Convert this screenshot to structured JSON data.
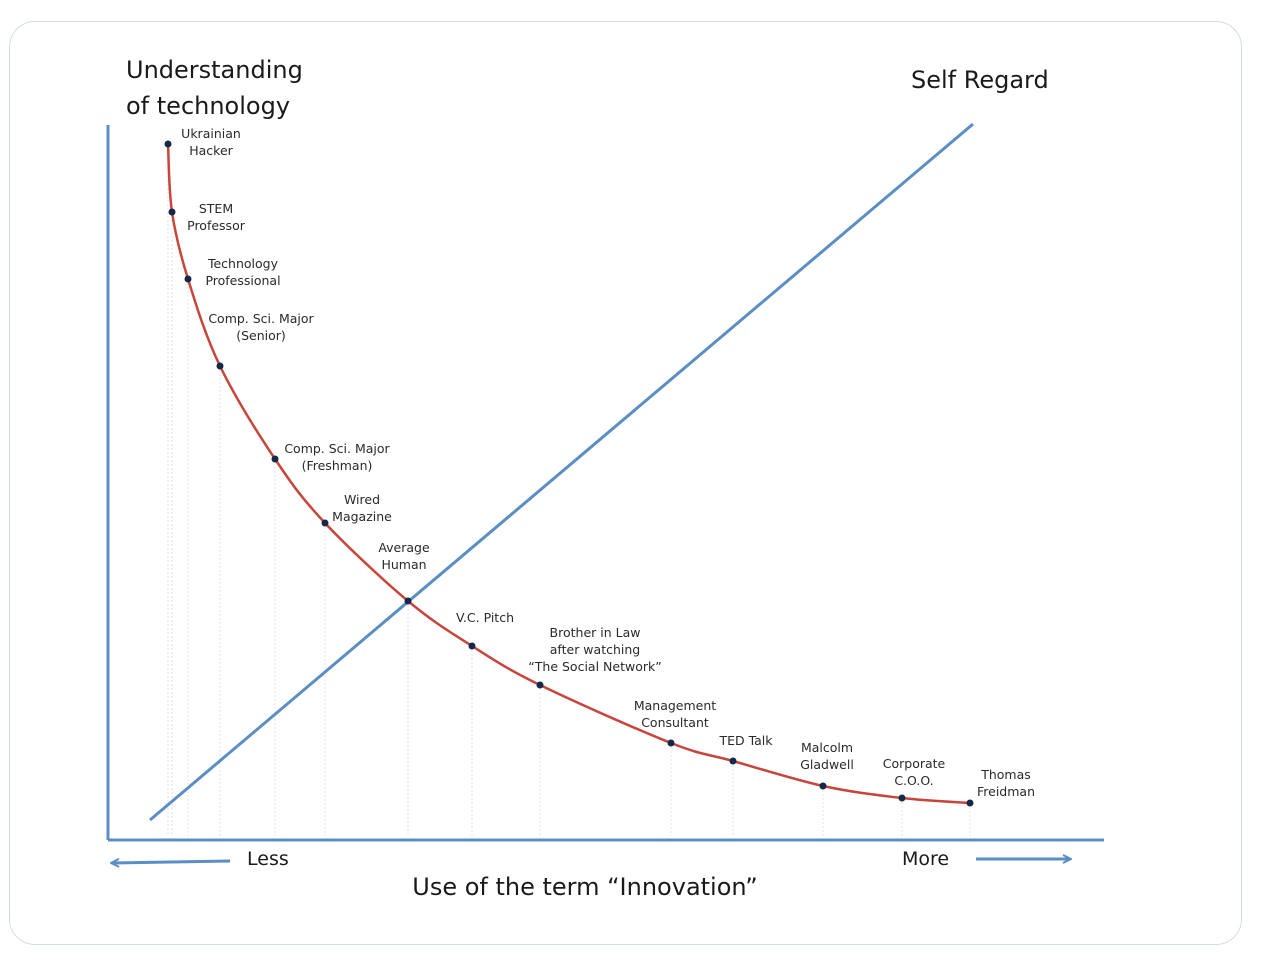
{
  "y_axis_title": [
    "Understanding",
    "of technology"
  ],
  "diagonal_label": "Self Regard",
  "x_axis_title": "Use of the term “Innovation”",
  "x_axis_less": "Less",
  "x_axis_more": "More",
  "colors": {
    "axis": "#5b8ec4",
    "curve": "#c8453b",
    "point": "#142848",
    "guide": "#dfe3e6",
    "card_border": "#d3dde3"
  },
  "points": [
    {
      "lines": [
        "Ukrainian",
        "Hacker"
      ]
    },
    {
      "lines": [
        "STEM",
        "Professor"
      ]
    },
    {
      "lines": [
        "Technology",
        "Professional"
      ]
    },
    {
      "lines": [
        "Comp. Sci. Major",
        "(Senior)"
      ]
    },
    {
      "lines": [
        "Comp. Sci. Major",
        "(Freshman)"
      ]
    },
    {
      "lines": [
        "Wired",
        "Magazine"
      ]
    },
    {
      "lines": [
        "Average",
        "Human"
      ]
    },
    {
      "lines": [
        "V.C. Pitch"
      ]
    },
    {
      "lines": [
        "Brother in Law",
        "after watching",
        "“The Social Network”"
      ]
    },
    {
      "lines": [
        "Management",
        "Consultant"
      ]
    },
    {
      "lines": [
        "TED Talk"
      ]
    },
    {
      "lines": [
        "Malcolm",
        "Gladwell"
      ]
    },
    {
      "lines": [
        "Corporate",
        "C.O.O."
      ]
    },
    {
      "lines": [
        "Thomas",
        "Freidman"
      ]
    }
  ]
}
